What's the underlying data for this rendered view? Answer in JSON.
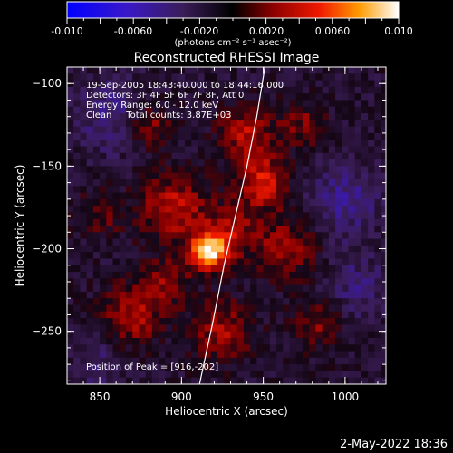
{
  "colorbar": {
    "ticks": [
      "-0.010",
      "-0.0060",
      "-0.0020",
      "0.0020",
      "0.0060",
      "0.010"
    ],
    "unit_html": "(photons cm⁻² s⁻¹ asec⁻²)"
  },
  "footer": {
    "timestamp": "2-May-2022 18:36"
  },
  "chart_data": {
    "type": "heatmap",
    "title": "Reconstructed RHESSI Image",
    "xlabel": "Heliocentric X (arcsec)",
    "ylabel": "Heliocentric Y (arcsec)",
    "xlim": [
      830,
      1025
    ],
    "ylim": [
      -282,
      -90
    ],
    "xticks": [
      850,
      900,
      950,
      1000
    ],
    "yticks": [
      -100,
      -150,
      -200,
      -250
    ],
    "colorbar_range": [
      -0.01,
      0.01
    ],
    "colormap": "blue-purple-black-red-yellow-white",
    "annotations": [
      "19-Sep-2005 18:43:40.000 to 18:44:16.000",
      "Detectors: 3F 4F 5F 6F 7F 8F, Att 0",
      "Energy Range: 6.0 - 12.0 keV",
      "Clean     Total counts: 3.87E+03",
      "Position of Peak = [916,-202]"
    ],
    "peak": {
      "x": 916,
      "y": -202
    },
    "sources": [
      {
        "x": 916,
        "y": -202,
        "peak": 0.01,
        "sigma": 8
      },
      {
        "x": 895,
        "y": -175,
        "peak": 0.005,
        "sigma": 14
      },
      {
        "x": 930,
        "y": -190,
        "peak": 0.004,
        "sigma": 12
      },
      {
        "x": 950,
        "y": -160,
        "peak": 0.0055,
        "sigma": 11
      },
      {
        "x": 940,
        "y": -130,
        "peak": 0.0045,
        "sigma": 12
      },
      {
        "x": 880,
        "y": -125,
        "peak": 0.004,
        "sigma": 10
      },
      {
        "x": 965,
        "y": -200,
        "peak": 0.004,
        "sigma": 13
      },
      {
        "x": 870,
        "y": -240,
        "peak": 0.0045,
        "sigma": 13
      },
      {
        "x": 925,
        "y": -250,
        "peak": 0.004,
        "sigma": 13
      },
      {
        "x": 985,
        "y": -245,
        "peak": 0.0035,
        "sigma": 11
      },
      {
        "x": 890,
        "y": -220,
        "peak": 0.0035,
        "sigma": 10
      },
      {
        "x": 975,
        "y": -125,
        "peak": 0.003,
        "sigma": 10
      },
      {
        "x": 850,
        "y": -180,
        "peak": 0.0025,
        "sigma": 10
      },
      {
        "x": 860,
        "y": -120,
        "peak": -0.003,
        "sigma": 16
      },
      {
        "x": 1000,
        "y": -170,
        "peak": -0.003,
        "sigma": 16
      },
      {
        "x": 1005,
        "y": -225,
        "peak": -0.0025,
        "sigma": 15
      },
      {
        "x": 850,
        "y": -270,
        "peak": -0.002,
        "sigma": 12
      }
    ],
    "limb_points": [
      {
        "x": 951,
        "y": -90
      },
      {
        "x": 946,
        "y": -120
      },
      {
        "x": 940,
        "y": -150
      },
      {
        "x": 933,
        "y": -180
      },
      {
        "x": 926,
        "y": -210
      },
      {
        "x": 919,
        "y": -245
      },
      {
        "x": 911,
        "y": -282
      }
    ]
  }
}
